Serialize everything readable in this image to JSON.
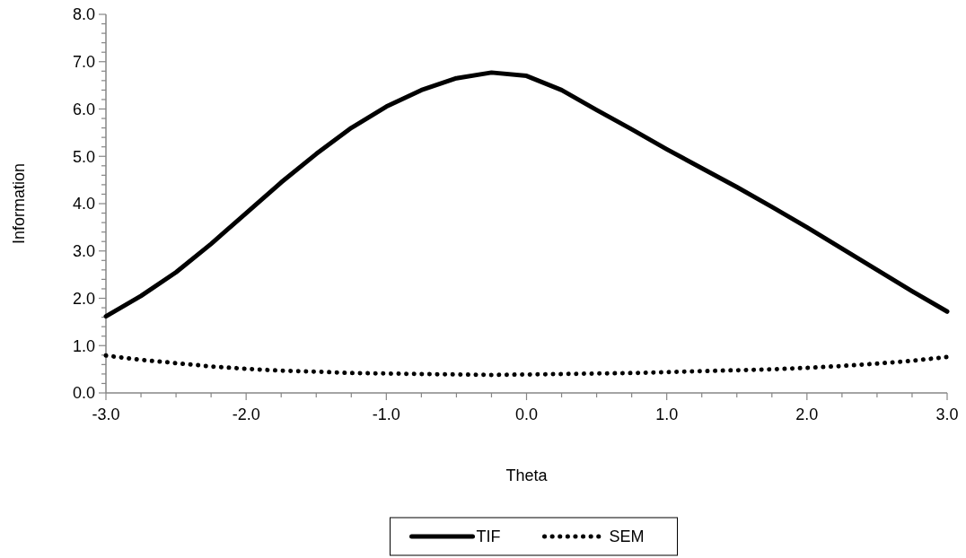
{
  "chart_data": {
    "type": "line",
    "xlabel": "Theta",
    "ylabel": "Information",
    "x": [
      -3,
      -2.75,
      -2.5,
      -2.25,
      -2,
      -1.75,
      -1.5,
      -1.25,
      -1,
      -0.75,
      -0.5,
      -0.25,
      0,
      0.25,
      0.5,
      0.75,
      1,
      1.25,
      1.5,
      1.75,
      2,
      2.25,
      2.5,
      2.75,
      3
    ],
    "series": [
      {
        "name": "TIF",
        "color": "#000000",
        "line_style": "solid",
        "values": [
          1.62,
          2.05,
          2.55,
          3.15,
          3.8,
          4.45,
          5.05,
          5.6,
          6.05,
          6.4,
          6.65,
          6.77,
          6.7,
          6.4,
          5.98,
          5.57,
          5.15,
          4.75,
          4.35,
          3.93,
          3.5,
          3.05,
          2.6,
          2.15,
          1.72
        ]
      },
      {
        "name": "SEM",
        "color": "#000000",
        "line_style": "dotted",
        "values": [
          0.79,
          0.7,
          0.63,
          0.56,
          0.51,
          0.47,
          0.45,
          0.42,
          0.41,
          0.4,
          0.39,
          0.38,
          0.39,
          0.4,
          0.41,
          0.42,
          0.44,
          0.46,
          0.48,
          0.5,
          0.53,
          0.57,
          0.62,
          0.68,
          0.76
        ]
      }
    ],
    "xlim": [
      -3,
      3
    ],
    "xticks": [
      {
        "value": -3,
        "label": "-3.0"
      },
      {
        "value": -2.75,
        "label": null
      },
      {
        "value": -2.5,
        "label": null
      },
      {
        "value": -2.25,
        "label": null
      },
      {
        "value": -2,
        "label": "-2.0"
      },
      {
        "value": -1.75,
        "label": null
      },
      {
        "value": -1.5,
        "label": null
      },
      {
        "value": -1.25,
        "label": null
      },
      {
        "value": -1,
        "label": "-1.0"
      },
      {
        "value": -0.75,
        "label": null
      },
      {
        "value": -0.5,
        "label": null
      },
      {
        "value": -0.25,
        "label": null
      },
      {
        "value": 0,
        "label": "0.0"
      },
      {
        "value": 0.25,
        "label": null
      },
      {
        "value": 0.5,
        "label": null
      },
      {
        "value": 0.75,
        "label": null
      },
      {
        "value": 1,
        "label": "1.0"
      },
      {
        "value": 1.25,
        "label": null
      },
      {
        "value": 1.5,
        "label": null
      },
      {
        "value": 1.75,
        "label": null
      },
      {
        "value": 2,
        "label": "2.0"
      },
      {
        "value": 2.25,
        "label": null
      },
      {
        "value": 2.5,
        "label": null
      },
      {
        "value": 2.75,
        "label": null
      },
      {
        "value": 3,
        "label": "3.0"
      }
    ],
    "ylim": [
      0,
      8
    ],
    "yticks": [
      {
        "value": 0,
        "label": "0.0"
      },
      {
        "value": 0.2,
        "label": null
      },
      {
        "value": 0.4,
        "label": null
      },
      {
        "value": 0.6,
        "label": null
      },
      {
        "value": 0.8,
        "label": null
      },
      {
        "value": 1,
        "label": "1.0"
      },
      {
        "value": 1.2,
        "label": null
      },
      {
        "value": 1.4,
        "label": null
      },
      {
        "value": 1.6,
        "label": null
      },
      {
        "value": 1.8,
        "label": null
      },
      {
        "value": 2,
        "label": "2.0"
      },
      {
        "value": 2.2,
        "label": null
      },
      {
        "value": 2.4,
        "label": null
      },
      {
        "value": 2.6,
        "label": null
      },
      {
        "value": 2.8,
        "label": null
      },
      {
        "value": 3,
        "label": "3.0"
      },
      {
        "value": 3.2,
        "label": null
      },
      {
        "value": 3.4,
        "label": null
      },
      {
        "value": 3.6,
        "label": null
      },
      {
        "value": 3.8,
        "label": null
      },
      {
        "value": 4,
        "label": "4.0"
      },
      {
        "value": 4.2,
        "label": null
      },
      {
        "value": 4.4,
        "label": null
      },
      {
        "value": 4.6,
        "label": null
      },
      {
        "value": 4.8,
        "label": null
      },
      {
        "value": 5,
        "label": "5.0"
      },
      {
        "value": 5.2,
        "label": null
      },
      {
        "value": 5.4,
        "label": null
      },
      {
        "value": 5.6,
        "label": null
      },
      {
        "value": 5.8,
        "label": null
      },
      {
        "value": 6,
        "label": "6.0"
      },
      {
        "value": 6.2,
        "label": null
      },
      {
        "value": 6.4,
        "label": null
      },
      {
        "value": 6.6,
        "label": null
      },
      {
        "value": 6.8,
        "label": null
      },
      {
        "value": 7,
        "label": "7.0"
      },
      {
        "value": 7.2,
        "label": null
      },
      {
        "value": 7.4,
        "label": null
      },
      {
        "value": 7.6,
        "label": null
      },
      {
        "value": 7.8,
        "label": null
      },
      {
        "value": 8,
        "label": "8.0"
      }
    ],
    "grid": false,
    "marker": "none",
    "legend": "bottom"
  }
}
